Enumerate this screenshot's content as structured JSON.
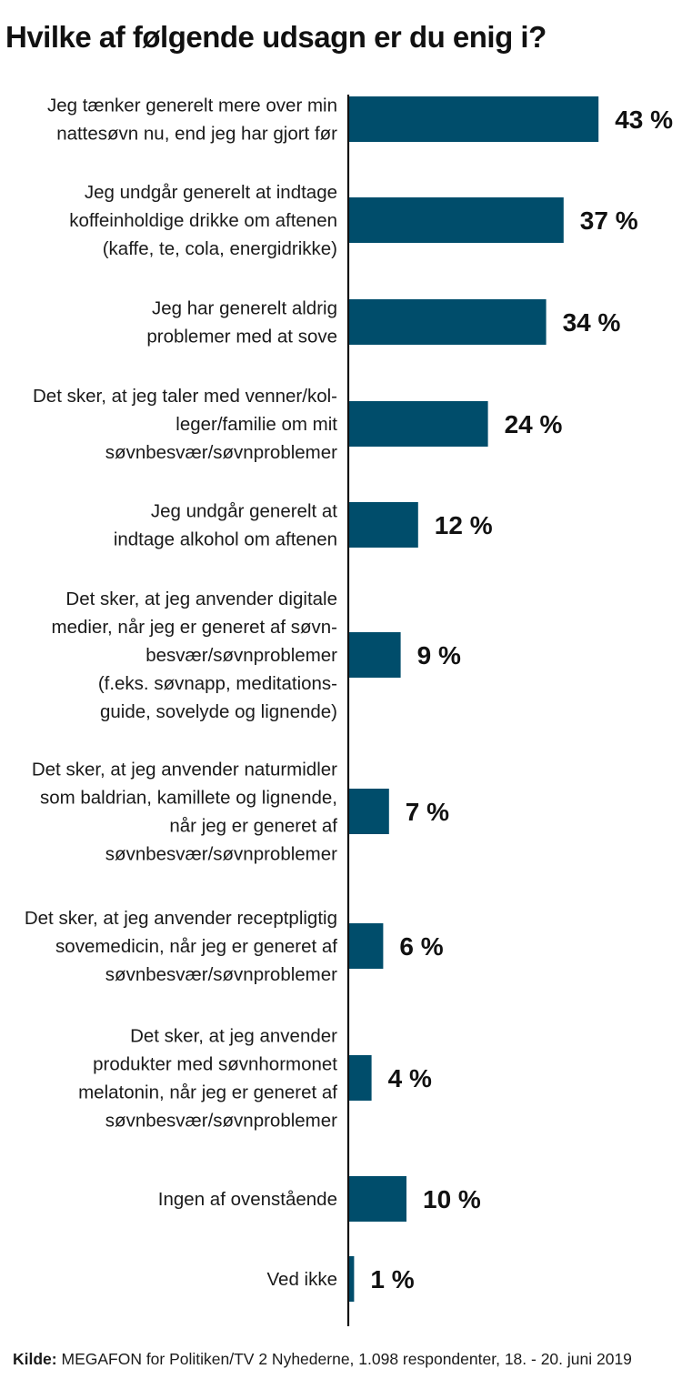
{
  "chart_data": {
    "type": "bar",
    "orientation": "horizontal",
    "title": "Hvilke af følgende udsagn er du enig i?",
    "unit": "%",
    "bar_color": "#004d6b",
    "categories": [
      [
        "Jeg tænker generelt mere over min",
        "nattesøvn nu, end jeg har gjort før"
      ],
      [
        "Jeg undgår generelt at indtage",
        "koffeinholdige drikke om aftenen",
        "(kaffe, te, cola, energidrikke)"
      ],
      [
        "Jeg har generelt aldrig",
        "problemer med at sove"
      ],
      [
        "Det sker, at jeg taler med venner/kol-",
        "leger/familie om mit",
        "søvnbesvær/søvnproblemer"
      ],
      [
        "Jeg undgår generelt at",
        "indtage alkohol om aftenen"
      ],
      [
        "Det sker, at jeg anvender digitale",
        "medier, når jeg er generet af søvn-",
        "besvær/søvnproblemer",
        "(f.eks. søvnapp, meditations-",
        "guide, sovelyde og lignende)"
      ],
      [
        "Det sker, at jeg anvender naturmidler",
        "som baldrian, kamillete og lignende,",
        "når jeg er generet af",
        "søvnbesvær/søvnproblemer"
      ],
      [
        "Det sker, at jeg anvender receptpligtig",
        "sovemedicin, når jeg er generet af",
        "søvnbesvær/søvnproblemer"
      ],
      [
        "Det sker, at jeg anvender",
        "produkter med søvnhormonet",
        "melatonin, når jeg er generet af",
        "søvnbesvær/søvnproblemer"
      ],
      [
        "Ingen af ovenstående"
      ],
      [
        "Ved ikke"
      ]
    ],
    "values": [
      43,
      37,
      34,
      24,
      12,
      9,
      7,
      6,
      4,
      10,
      1
    ],
    "value_labels": [
      "43 %",
      "37 %",
      "34 %",
      "24 %",
      "12 %",
      "9 %",
      "7 %",
      "6 %",
      "4 %",
      "10 %",
      "1 %"
    ]
  },
  "source": {
    "label": "Kilde:",
    "text": " MEGAFON for Politiken/TV 2 Nyhederne, 1.098 respondenter, 18. - 20. juni 2019"
  }
}
